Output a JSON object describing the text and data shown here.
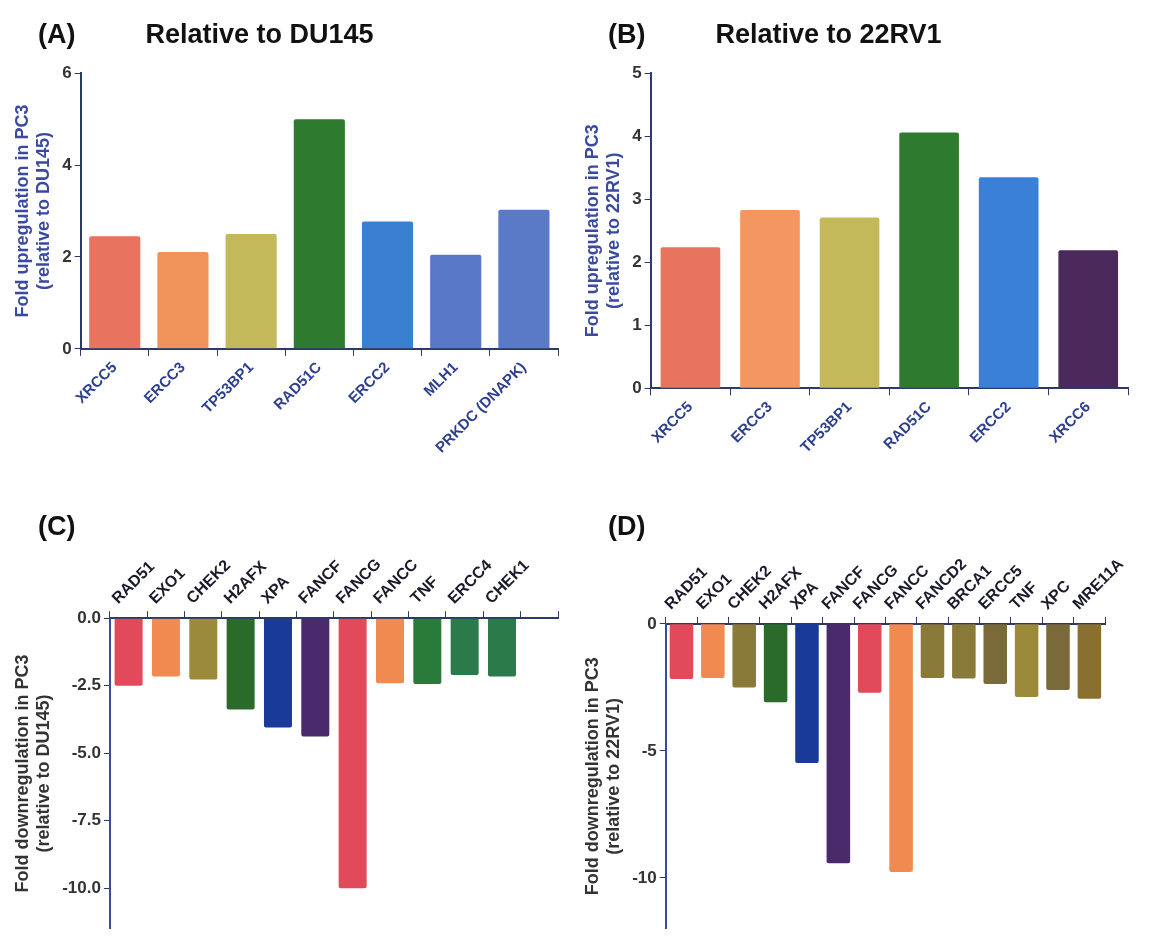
{
  "chart_data": [
    {
      "type": "bar",
      "title": "(A)",
      "subtitle": "Relative to DU145",
      "ylabel": "Fold upregulation in PC3\n(relative to DU145)",
      "categories": [
        "XRCC5",
        "ERCC3",
        "TP53BP1",
        "RAD51C",
        "ERCC2",
        "MLH1",
        "PRKDC (DNAPK)"
      ],
      "values": [
        2.45,
        2.11,
        2.5,
        5.0,
        2.77,
        2.05,
        3.03
      ],
      "colors": [
        "#e8735f",
        "#f0935a",
        "#c4b95a",
        "#2e7a2e",
        "#3a7fd0",
        "#5a78c8",
        "#5a7ac8"
      ],
      "ylim": [
        0,
        6
      ],
      "yticks": [
        0,
        2,
        4,
        6
      ]
    },
    {
      "type": "bar",
      "title": "(B)",
      "subtitle": "Relative to 22RV1",
      "ylabel": "Fold upregulation in PC3\n(relative to 22RV1)",
      "categories": [
        "XRCC5",
        "ERCC3",
        "TP53BP1",
        "RAD51C",
        "ERCC2",
        "XRCC6"
      ],
      "values": [
        2.24,
        2.83,
        2.71,
        4.06,
        3.35,
        2.19
      ],
      "colors": [
        "#e8735f",
        "#f49660",
        "#c4b95a",
        "#2e7a2e",
        "#3a80d8",
        "#4a2a5a"
      ],
      "ylim": [
        0,
        5
      ],
      "yticks": [
        0,
        1,
        2,
        3,
        4,
        5
      ]
    },
    {
      "type": "bar",
      "title": "(C)",
      "ylabel": "Fold downregulation in PC3\n(relative to DU145)",
      "categories": [
        "RAD51",
        "EXO1",
        "CHEK2",
        "H2AFX",
        "XPA",
        "FANCF",
        "FANCG",
        "FANCC",
        "TNF",
        "ERCC4",
        "CHEK1",
        null
      ],
      "values": [
        -2.5,
        -2.16,
        -2.27,
        -3.38,
        -4.05,
        -4.38,
        -10.0,
        -2.41,
        -2.44,
        -2.1,
        -2.16,
        null
      ],
      "colors": [
        "#e04a5a",
        "#f08a50",
        "#9a8a3a",
        "#2a6a2a",
        "#1a3a9a",
        "#4a2a6a",
        "#e04a5a",
        "#f08a50",
        "#2a7a3a",
        "#2a7a4a",
        "#2a7a4a",
        "#2a7a4a"
      ],
      "ylim": [
        -11.5,
        0
      ],
      "yticks": [
        {
          "value": 0,
          "label": "0.0"
        },
        {
          "value": -2.5,
          "label": "-2.5"
        },
        {
          "value": -5,
          "label": "-5.0"
        },
        {
          "value": -7.5,
          "label": "-7.5"
        },
        {
          "value": -10,
          "label": "-10.0"
        }
      ]
    },
    {
      "type": "bar",
      "title": "(D)",
      "ylabel": "Fold downregulation in PC3\n(relative to 22RV1)",
      "categories": [
        "RAD51",
        "EXO1",
        "CHEK2",
        "H2AFX",
        "XPA",
        "FANCF",
        "FANCG",
        "FANCC",
        "FANCD2",
        "BRCA1",
        "ERCC5",
        "TNF",
        "XPC",
        "MRE11A"
      ],
      "values": [
        -2.17,
        -2.13,
        -2.5,
        -3.09,
        -5.48,
        -9.42,
        -2.71,
        -9.76,
        -2.13,
        -2.15,
        -2.37,
        -2.88,
        -2.6,
        -2.95
      ],
      "colors": [
        "#e04a5a",
        "#f08a50",
        "#8a7a3a",
        "#2a6a2a",
        "#1a3a9a",
        "#4a2a6a",
        "#e04a5a",
        "#f08a50",
        "#8a7a3a",
        "#8a7a3a",
        "#7a6a3a",
        "#9a8a3a",
        "#7a6a3a",
        "#8a7030"
      ],
      "ylim": [
        -12,
        0
      ],
      "yticks": [
        0,
        -5,
        -10
      ]
    }
  ]
}
